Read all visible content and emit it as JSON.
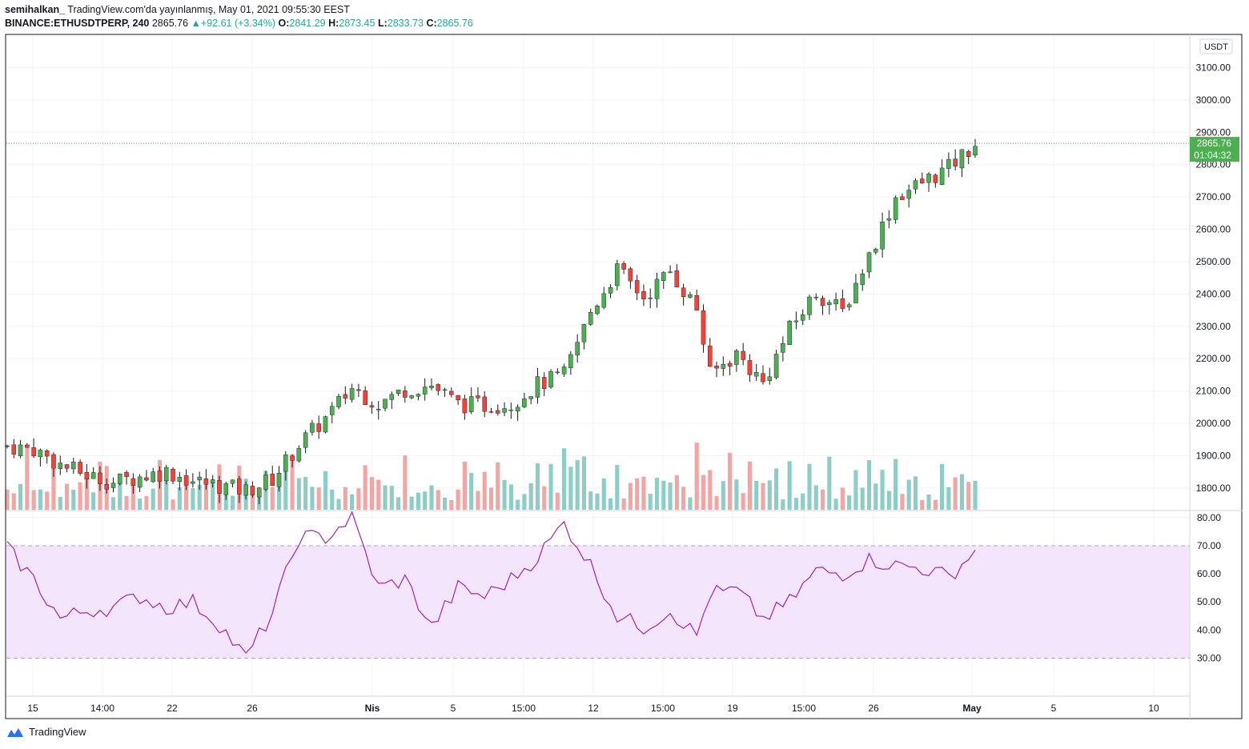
{
  "header": {
    "author": "semihalkan_",
    "published": "TradingView.com'da yayınlanmış, May 01, 2021 09:55:30 EEST",
    "symbol": "BINANCE:ETHUSDTPERP, 240",
    "last": "2865.76",
    "change": "+92.61 (+3.34%)",
    "o_label": "O:",
    "o_value": "2841.29",
    "h_label": "H:",
    "h_value": "2873.45",
    "l_label": "L:",
    "l_value": "2833.73",
    "c_label": "C:",
    "c_value": "2865.76"
  },
  "colors": {
    "up": "#26a69a",
    "down": "#ef5350",
    "candle_up": "#4caf50",
    "candle_down": "#f44336",
    "volume_up": "#8ecdc6",
    "volume_down": "#f2a6a4",
    "rsi_line": "#9c27b0",
    "rsi_band": "#f3e5fc",
    "price_tag": "#4caf50"
  },
  "footer": {
    "brand": "TradingView"
  },
  "chart_data": {
    "type": "candlestick",
    "currency_label": "USDT",
    "price_axis": {
      "ticks": [
        "3100.00",
        "3000.00",
        "2900.00",
        "2800.00",
        "2700.00",
        "2600.00",
        "2500.00",
        "2400.00",
        "2300.00",
        "2200.00",
        "2100.00",
        "2000.00",
        "1900.00",
        "1800.00"
      ],
      "tick_values": [
        3100,
        3000,
        2900,
        2800,
        2700,
        2600,
        2500,
        2400,
        2300,
        2200,
        2100,
        2000,
        1900,
        1800
      ],
      "range": [
        1733,
        3200
      ],
      "last_price_label": "2865.76",
      "countdown_label": "01:04:32",
      "last_price": 2865.76
    },
    "rsi_axis": {
      "ticks": [
        "80.00",
        "70.00",
        "60.00",
        "50.00",
        "40.00",
        "30.00"
      ],
      "tick_values": [
        80,
        70,
        60,
        50,
        40,
        30
      ],
      "range": [
        16.5,
        82.5
      ],
      "band": [
        30,
        70
      ]
    },
    "time_axis": {
      "labels": [
        "15",
        "14:00",
        "22",
        "26",
        "Nis",
        "5",
        "15:00",
        "12",
        "15:00",
        "19",
        "15:00",
        "26",
        "May",
        "5",
        "10"
      ],
      "bold": [
        "Nis",
        "May"
      ],
      "positions": [
        41,
        128,
        215,
        315,
        465,
        566,
        654,
        741,
        828,
        915,
        1004,
        1091,
        1214,
        1316,
        1441
      ],
      "bar_range": [
        0,
        120
      ]
    },
    "anchors": [
      [
        0,
        1930
      ],
      [
        4,
        1920
      ],
      [
        8,
        1872
      ],
      [
        12,
        1840
      ],
      [
        16,
        1818
      ],
      [
        20,
        1835
      ],
      [
        24,
        1852
      ],
      [
        28,
        1822
      ],
      [
        32,
        1808
      ],
      [
        36,
        1792
      ],
      [
        40,
        1828
      ],
      [
        44,
        1935
      ],
      [
        48,
        2015
      ],
      [
        52,
        2110
      ],
      [
        56,
        2060
      ],
      [
        60,
        2105
      ],
      [
        64,
        2118
      ],
      [
        68,
        2060
      ],
      [
        72,
        2055
      ],
      [
        76,
        2062
      ],
      [
        80,
        2120
      ],
      [
        84,
        2150
      ],
      [
        88,
        2345
      ],
      [
        92,
        2475
      ],
      [
        96,
        2390
      ],
      [
        100,
        2470
      ],
      [
        104,
        2355
      ],
      [
        106,
        2150
      ],
      [
        110,
        2215
      ],
      [
        114,
        2125
      ],
      [
        118,
        2290
      ],
      [
        122,
        2405
      ],
      [
        126,
        2345
      ],
      [
        130,
        2520
      ],
      [
        134,
        2700
      ],
      [
        138,
        2745
      ],
      [
        142,
        2790
      ],
      [
        146,
        2865
      ]
    ],
    "rsi_anchors": [
      [
        0,
        69
      ],
      [
        4,
        58
      ],
      [
        8,
        44
      ],
      [
        12,
        47
      ],
      [
        16,
        48
      ],
      [
        20,
        52
      ],
      [
        24,
        48
      ],
      [
        28,
        50
      ],
      [
        32,
        42
      ],
      [
        36,
        30
      ],
      [
        40,
        46
      ],
      [
        44,
        73
      ],
      [
        48,
        73
      ],
      [
        52,
        80
      ],
      [
        56,
        55
      ],
      [
        60,
        58
      ],
      [
        64,
        41
      ],
      [
        68,
        55
      ],
      [
        72,
        52
      ],
      [
        76,
        58
      ],
      [
        80,
        66
      ],
      [
        84,
        78
      ],
      [
        88,
        63
      ],
      [
        92,
        45
      ],
      [
        96,
        41
      ],
      [
        100,
        47
      ],
      [
        104,
        38
      ],
      [
        106,
        53
      ],
      [
        110,
        54
      ],
      [
        114,
        44
      ],
      [
        118,
        50
      ],
      [
        122,
        61
      ],
      [
        126,
        60
      ],
      [
        130,
        65
      ],
      [
        134,
        63
      ],
      [
        138,
        62
      ],
      [
        142,
        59
      ],
      [
        146,
        68
      ]
    ],
    "bar_count": 147,
    "series": [
      {
        "name": "ETHUSDTPERP, 240",
        "type": "candlestick"
      },
      {
        "name": "Volume",
        "type": "bar"
      },
      {
        "name": "RSI",
        "type": "line"
      }
    ]
  }
}
